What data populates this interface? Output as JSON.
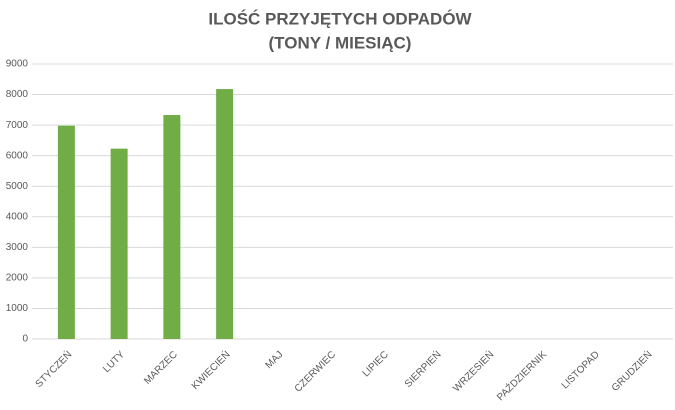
{
  "chart_data": {
    "type": "bar",
    "title": "ILOŚĆ PRZYJĘTYCH ODPADÓW",
    "subtitle": "(TONY / MIESIĄC)",
    "categories": [
      "STYCZEŃ",
      "LUTY",
      "MARZEC",
      "KWIECIEŃ",
      "MAJ",
      "CZERWIEC",
      "LIPIEC",
      "SIERPIEŃ",
      "WRZESIEŃ",
      "PAŹDZIERNIK",
      "LISTOPAD",
      "GRUDZIEŃ"
    ],
    "values": [
      6980,
      6230,
      7330,
      8180,
      null,
      null,
      null,
      null,
      null,
      null,
      null,
      null
    ],
    "color": "#70ad47",
    "ylim": [
      0,
      9000
    ],
    "yticks": [
      0,
      1000,
      2000,
      3000,
      4000,
      5000,
      6000,
      7000,
      8000,
      9000
    ],
    "grid": true
  }
}
